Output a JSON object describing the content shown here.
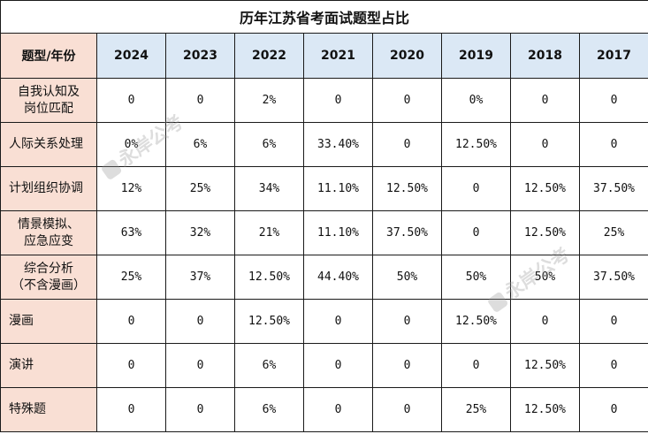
{
  "title": "历年江苏省考面试题型占比",
  "header": {
    "corner": "题型/年份",
    "years": [
      "2024",
      "2023",
      "2022",
      "2021",
      "2020",
      "2019",
      "2018",
      "2017"
    ]
  },
  "rows": [
    {
      "label": "自我认知及\n岗位匹配",
      "values": [
        "0",
        "0",
        "2%",
        "0",
        "0",
        "0%",
        "0",
        "0"
      ]
    },
    {
      "label": "人际关系处理",
      "values": [
        "0%",
        "6%",
        "6%",
        "33.40%",
        "0",
        "12.50%",
        "0",
        "0"
      ]
    },
    {
      "label": "计划组织协调",
      "values": [
        "12%",
        "25%",
        "34%",
        "11.10%",
        "12.50%",
        "0",
        "12.50%",
        "37.50%"
      ]
    },
    {
      "label": "情景模拟、\n应急应变",
      "values": [
        "63%",
        "32%",
        "21%",
        "11.10%",
        "37.50%",
        "0",
        "12.50%",
        "25%"
      ]
    },
    {
      "label": "综合分析\n（不含漫画）",
      "values": [
        "25%",
        "37%",
        "12.50%",
        "44.40%",
        "50%",
        "50%",
        "50%",
        "37.50%"
      ]
    },
    {
      "label": "漫画",
      "values": [
        "0",
        "0",
        "12.50%",
        "0",
        "0",
        "12.50%",
        "0",
        "0"
      ]
    },
    {
      "label": "演讲",
      "values": [
        "0",
        "0",
        "6%",
        "0",
        "0",
        "0",
        "12.50%",
        "0"
      ]
    },
    {
      "label": "特殊题",
      "values": [
        "0",
        "0",
        "6%",
        "0",
        "0",
        "25%",
        "12.50%",
        "0"
      ]
    }
  ],
  "watermark": "永岸公考"
}
